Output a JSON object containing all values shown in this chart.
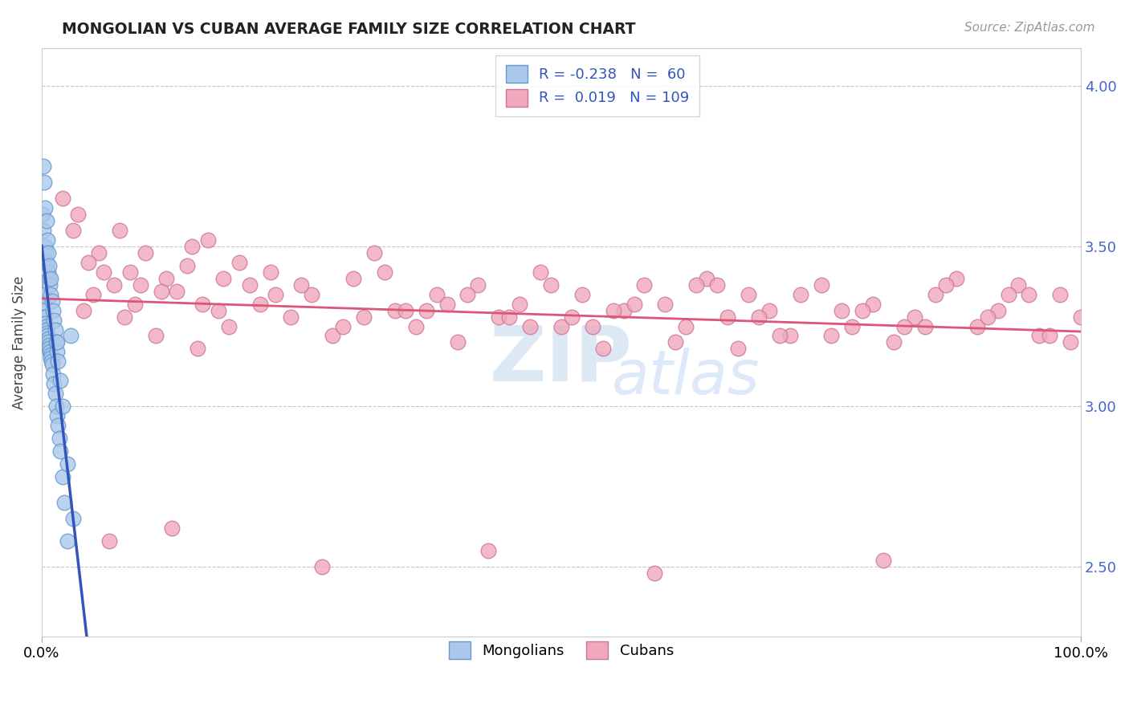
{
  "title": "MONGOLIAN VS CUBAN AVERAGE FAMILY SIZE CORRELATION CHART",
  "source_text": "Source: ZipAtlas.com",
  "ylabel": "Average Family Size",
  "xlim": [
    0.0,
    100.0
  ],
  "ylim": [
    2.28,
    4.12
  ],
  "yticks": [
    2.5,
    3.0,
    3.5,
    4.0
  ],
  "xticklabels": [
    "0.0%",
    "100.0%"
  ],
  "background_color": "#ffffff",
  "grid_color": "#c8c8c8",
  "mongolian_color": "#aac8ea",
  "cuban_color": "#f0a8bc",
  "mongolian_edge_color": "#6699cc",
  "cuban_edge_color": "#cc7799",
  "blue_line_color": "#3355bb",
  "pink_line_color": "#dd5577",
  "dashed_line_color": "#aabbdd",
  "legend_R_mongolian": "-0.238",
  "legend_N_mongolian": "60",
  "legend_R_cuban": "0.019",
  "legend_N_cuban": "109",
  "mongolian_x": [
    0.1,
    0.15,
    0.2,
    0.25,
    0.3,
    0.35,
    0.4,
    0.45,
    0.5,
    0.55,
    0.6,
    0.65,
    0.7,
    0.75,
    0.8,
    0.85,
    0.9,
    0.95,
    1.0,
    1.1,
    1.2,
    1.3,
    1.4,
    1.5,
    1.6,
    1.7,
    1.8,
    2.0,
    2.2,
    2.5,
    0.1,
    0.2,
    0.3,
    0.4,
    0.5,
    0.6,
    0.7,
    0.8,
    0.9,
    1.0,
    1.1,
    1.2,
    1.3,
    1.4,
    1.5,
    1.6,
    1.8,
    2.0,
    2.5,
    3.0,
    0.15,
    0.25,
    0.35,
    0.45,
    0.55,
    0.65,
    0.75,
    0.85,
    1.5,
    2.8
  ],
  "mongolian_y": [
    3.35,
    3.32,
    3.3,
    3.28,
    3.28,
    3.26,
    3.25,
    3.24,
    3.23,
    3.22,
    3.21,
    3.2,
    3.19,
    3.18,
    3.17,
    3.16,
    3.15,
    3.14,
    3.13,
    3.1,
    3.07,
    3.04,
    3.0,
    2.97,
    2.94,
    2.9,
    2.86,
    2.78,
    2.7,
    2.58,
    3.6,
    3.55,
    3.5,
    3.48,
    3.45,
    3.42,
    3.4,
    3.38,
    3.35,
    3.33,
    3.3,
    3.27,
    3.24,
    3.2,
    3.17,
    3.14,
    3.08,
    3.0,
    2.82,
    2.65,
    3.75,
    3.7,
    3.62,
    3.58,
    3.52,
    3.48,
    3.44,
    3.4,
    3.2,
    3.22
  ],
  "cuban_x": [
    2.0,
    3.5,
    4.0,
    5.0,
    6.0,
    7.0,
    7.5,
    8.0,
    9.0,
    10.0,
    11.0,
    12.0,
    13.0,
    14.0,
    15.0,
    16.0,
    17.0,
    18.0,
    19.0,
    20.0,
    22.0,
    24.0,
    26.0,
    28.0,
    30.0,
    32.0,
    34.0,
    36.0,
    38.0,
    40.0,
    42.0,
    44.0,
    46.0,
    48.0,
    50.0,
    52.0,
    54.0,
    56.0,
    58.0,
    60.0,
    62.0,
    64.0,
    66.0,
    68.0,
    70.0,
    72.0,
    75.0,
    78.0,
    80.0,
    82.0,
    84.0,
    86.0,
    88.0,
    90.0,
    92.0,
    94.0,
    96.0,
    98.0,
    100.0,
    3.0,
    5.5,
    8.5,
    11.5,
    14.5,
    17.5,
    21.0,
    25.0,
    29.0,
    33.0,
    37.0,
    41.0,
    45.0,
    49.0,
    53.0,
    57.0,
    61.0,
    65.0,
    69.0,
    73.0,
    76.0,
    79.0,
    83.0,
    87.0,
    91.0,
    95.0,
    99.0,
    4.5,
    9.5,
    15.5,
    22.5,
    31.0,
    39.0,
    47.0,
    55.0,
    63.0,
    71.0,
    77.0,
    85.0,
    93.0,
    6.5,
    12.5,
    27.0,
    43.0,
    59.0,
    67.0,
    81.0,
    97.0,
    35.0,
    51.0
  ],
  "cuban_y": [
    3.65,
    3.6,
    3.3,
    3.35,
    3.42,
    3.38,
    3.55,
    3.28,
    3.32,
    3.48,
    3.22,
    3.4,
    3.36,
    3.44,
    3.18,
    3.52,
    3.3,
    3.25,
    3.45,
    3.38,
    3.42,
    3.28,
    3.35,
    3.22,
    3.4,
    3.48,
    3.3,
    3.25,
    3.35,
    3.2,
    3.38,
    3.28,
    3.32,
    3.42,
    3.25,
    3.35,
    3.18,
    3.3,
    3.38,
    3.32,
    3.25,
    3.4,
    3.28,
    3.35,
    3.3,
    3.22,
    3.38,
    3.25,
    3.32,
    3.2,
    3.28,
    3.35,
    3.4,
    3.25,
    3.3,
    3.38,
    3.22,
    3.35,
    3.28,
    3.55,
    3.48,
    3.42,
    3.36,
    3.5,
    3.4,
    3.32,
    3.38,
    3.25,
    3.42,
    3.3,
    3.35,
    3.28,
    3.38,
    3.25,
    3.32,
    3.2,
    3.38,
    3.28,
    3.35,
    3.22,
    3.3,
    3.25,
    3.38,
    3.28,
    3.35,
    3.2,
    3.45,
    3.38,
    3.32,
    3.35,
    3.28,
    3.32,
    3.25,
    3.3,
    3.38,
    3.22,
    3.3,
    3.25,
    3.35,
    2.58,
    2.62,
    2.5,
    2.55,
    2.48,
    3.18,
    2.52,
    3.22,
    3.3,
    3.28
  ]
}
